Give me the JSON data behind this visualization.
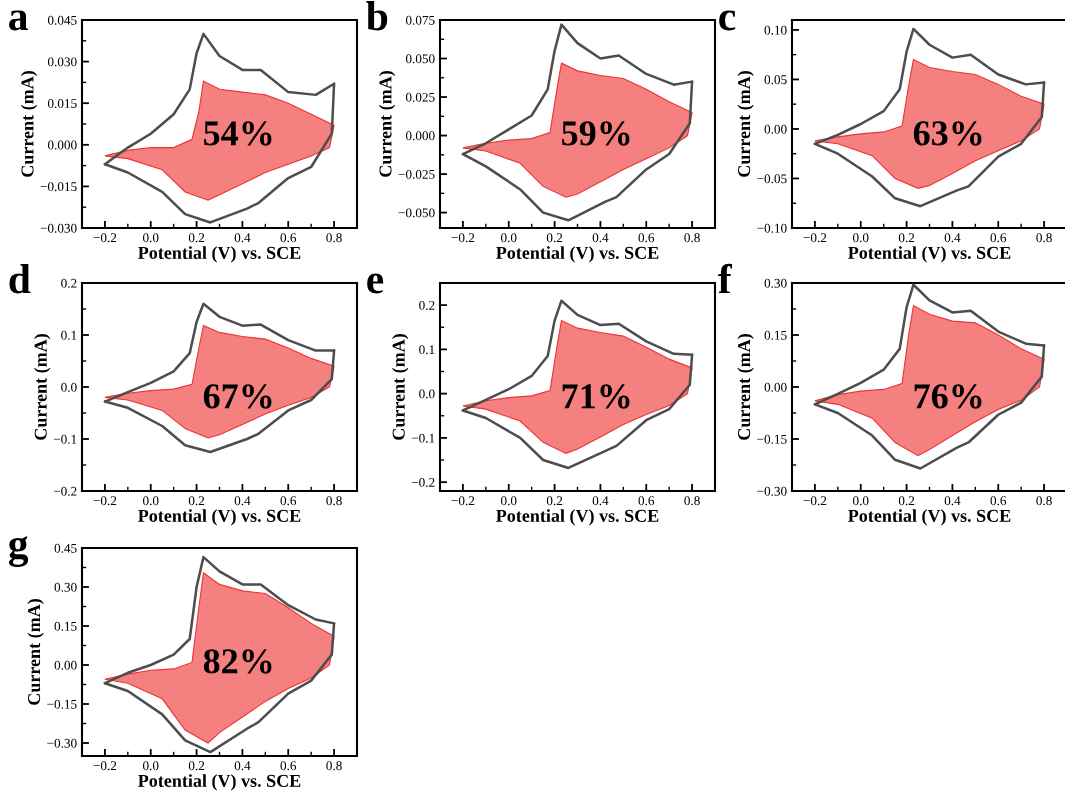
{
  "chart_data": [
    {
      "type": "line",
      "title": "a",
      "xlabel": "Potential (V) vs. SCE",
      "ylabel": "Current (mA)",
      "annotations": [
        "54%"
      ],
      "xlim": [
        -0.3,
        0.9
      ],
      "xticks": [
        {
          "value": -0.2,
          "label": "−0.2"
        },
        {
          "value": 0.0,
          "label": "0.0"
        },
        {
          "value": 0.2,
          "label": "0.2"
        },
        {
          "value": 0.4,
          "label": "0.4"
        },
        {
          "value": 0.6,
          "label": "0.6"
        },
        {
          "value": 0.8,
          "label": "0.8"
        }
      ],
      "ylim": [
        -0.03,
        0.045
      ],
      "yticks": [
        {
          "value": -0.03,
          "label": "−0.030"
        },
        {
          "value": -0.015,
          "label": "−0.015"
        },
        {
          "value": 0.0,
          "label": "0.000"
        },
        {
          "value": 0.015,
          "label": "0.015"
        },
        {
          "value": 0.03,
          "label": "0.030"
        },
        {
          "value": 0.045,
          "label": "0.045"
        }
      ],
      "grid": false,
      "legend": false,
      "series": [
        {
          "type": "line",
          "color": "#4d4d4d",
          "x": [
            -0.2,
            -0.1,
            0.0,
            0.1,
            0.17,
            0.2,
            0.23,
            0.3,
            0.4,
            0.48,
            0.6,
            0.72,
            0.8
          ],
          "values": [
            -0.007,
            -0.001,
            0.004,
            0.011,
            0.02,
            0.033,
            0.04,
            0.032,
            0.027,
            0.027,
            0.019,
            0.018,
            0.022
          ]
        },
        {
          "type": "line",
          "color": "#4d4d4d",
          "x": [
            -0.2,
            -0.1,
            0.05,
            0.15,
            0.26,
            0.42,
            0.47,
            0.6,
            0.7,
            0.79,
            0.8
          ],
          "values": [
            -0.007,
            -0.01,
            -0.017,
            -0.025,
            -0.028,
            -0.023,
            -0.021,
            -0.012,
            -0.008,
            0.004,
            0.022
          ]
        },
        {
          "type": "area",
          "color": "#f58080",
          "x": [
            -0.2,
            -0.1,
            0.0,
            0.1,
            0.18,
            0.21,
            0.23,
            0.3,
            0.4,
            0.5,
            0.6,
            0.7,
            0.8,
            0.78,
            0.7,
            0.6,
            0.5,
            0.4,
            0.3,
            0.25,
            0.15,
            0.05,
            -0.1,
            -0.2
          ],
          "values": [
            -0.004,
            -0.002,
            -0.001,
            -0.001,
            0.002,
            0.012,
            0.023,
            0.02,
            0.019,
            0.018,
            0.015,
            0.011,
            0.007,
            -0.001,
            -0.004,
            -0.007,
            -0.01,
            -0.014,
            -0.018,
            -0.02,
            -0.017,
            -0.009,
            -0.005,
            -0.004
          ]
        }
      ]
    },
    {
      "type": "line",
      "title": "b",
      "xlabel": "Potential (V) vs. SCE",
      "ylabel": "Current (mA)",
      "annotations": [
        "59%"
      ],
      "xlim": [
        -0.3,
        0.9
      ],
      "xticks": [
        {
          "value": -0.2,
          "label": "−0.2"
        },
        {
          "value": 0.0,
          "label": "0.0"
        },
        {
          "value": 0.2,
          "label": "0.2"
        },
        {
          "value": 0.4,
          "label": "0.4"
        },
        {
          "value": 0.6,
          "label": "0.6"
        },
        {
          "value": 0.8,
          "label": "0.8"
        }
      ],
      "ylim": [
        -0.06,
        0.075
      ],
      "yticks": [
        {
          "value": -0.05,
          "label": "−0.050"
        },
        {
          "value": -0.025,
          "label": "−0.025"
        },
        {
          "value": 0.0,
          "label": "0.000"
        },
        {
          "value": 0.025,
          "label": "0.025"
        },
        {
          "value": 0.05,
          "label": "0.050"
        },
        {
          "value": 0.075,
          "label": "0.075"
        }
      ],
      "grid": false,
      "legend": false,
      "series": [
        {
          "type": "line",
          "color": "#4d4d4d",
          "x": [
            -0.2,
            -0.1,
            0.0,
            0.1,
            0.17,
            0.2,
            0.23,
            0.3,
            0.4,
            0.48,
            0.6,
            0.72,
            0.8
          ],
          "values": [
            -0.012,
            -0.005,
            0.004,
            0.013,
            0.03,
            0.055,
            0.072,
            0.06,
            0.05,
            0.052,
            0.04,
            0.033,
            0.035
          ]
        },
        {
          "type": "line",
          "color": "#4d4d4d",
          "x": [
            -0.2,
            -0.1,
            0.05,
            0.15,
            0.26,
            0.42,
            0.47,
            0.6,
            0.7,
            0.79,
            0.8
          ],
          "values": [
            -0.012,
            -0.02,
            -0.035,
            -0.05,
            -0.055,
            -0.043,
            -0.04,
            -0.022,
            -0.012,
            0.008,
            0.035
          ]
        },
        {
          "type": "area",
          "color": "#f58080",
          "x": [
            -0.2,
            -0.1,
            0.0,
            0.1,
            0.18,
            0.21,
            0.23,
            0.3,
            0.4,
            0.5,
            0.6,
            0.7,
            0.8,
            0.78,
            0.7,
            0.6,
            0.5,
            0.4,
            0.3,
            0.25,
            0.15,
            0.05,
            -0.1,
            -0.2
          ],
          "values": [
            -0.008,
            -0.005,
            -0.003,
            -0.002,
            0.002,
            0.03,
            0.047,
            0.042,
            0.039,
            0.037,
            0.03,
            0.022,
            0.015,
            0.0,
            -0.008,
            -0.015,
            -0.022,
            -0.03,
            -0.038,
            -0.04,
            -0.033,
            -0.018,
            -0.01,
            -0.008
          ]
        }
      ]
    },
    {
      "type": "line",
      "title": "c",
      "xlabel": "Potential (V) vs. SCE",
      "ylabel": "Current (mA)",
      "annotations": [
        "63%"
      ],
      "xlim": [
        -0.3,
        0.9
      ],
      "xticks": [
        {
          "value": -0.2,
          "label": "−0.2"
        },
        {
          "value": 0.0,
          "label": "0.0"
        },
        {
          "value": 0.2,
          "label": "0.2"
        },
        {
          "value": 0.4,
          "label": "0.4"
        },
        {
          "value": 0.6,
          "label": "0.6"
        },
        {
          "value": 0.8,
          "label": "0.8"
        }
      ],
      "ylim": [
        -0.1,
        0.11
      ],
      "yticks": [
        {
          "value": -0.1,
          "label": "−0.10"
        },
        {
          "value": -0.05,
          "label": "−0.05"
        },
        {
          "value": 0.0,
          "label": "0.00"
        },
        {
          "value": 0.05,
          "label": "0.05"
        },
        {
          "value": 0.1,
          "label": "0.10"
        }
      ],
      "grid": false,
      "legend": false,
      "series": [
        {
          "type": "line",
          "color": "#4d4d4d",
          "x": [
            -0.2,
            -0.1,
            0.0,
            0.1,
            0.17,
            0.2,
            0.23,
            0.3,
            0.4,
            0.48,
            0.6,
            0.72,
            0.8
          ],
          "values": [
            -0.015,
            -0.006,
            0.005,
            0.018,
            0.04,
            0.078,
            0.101,
            0.085,
            0.072,
            0.075,
            0.055,
            0.045,
            0.047
          ]
        },
        {
          "type": "line",
          "color": "#4d4d4d",
          "x": [
            -0.2,
            -0.1,
            0.05,
            0.15,
            0.26,
            0.42,
            0.47,
            0.6,
            0.7,
            0.79,
            0.8
          ],
          "values": [
            -0.015,
            -0.025,
            -0.048,
            -0.07,
            -0.078,
            -0.062,
            -0.058,
            -0.028,
            -0.015,
            0.012,
            0.047
          ]
        },
        {
          "type": "area",
          "color": "#f58080",
          "x": [
            -0.2,
            -0.1,
            0.0,
            0.1,
            0.18,
            0.21,
            0.23,
            0.3,
            0.4,
            0.5,
            0.6,
            0.7,
            0.8,
            0.78,
            0.7,
            0.6,
            0.5,
            0.4,
            0.3,
            0.25,
            0.15,
            0.05,
            -0.1,
            -0.2
          ],
          "values": [
            -0.012,
            -0.008,
            -0.005,
            -0.003,
            0.003,
            0.045,
            0.07,
            0.062,
            0.058,
            0.055,
            0.045,
            0.033,
            0.025,
            0.0,
            -0.012,
            -0.022,
            -0.032,
            -0.045,
            -0.057,
            -0.06,
            -0.05,
            -0.027,
            -0.015,
            -0.012
          ]
        }
      ]
    },
    {
      "type": "line",
      "title": "d",
      "xlabel": "Potential (V) vs. SCE",
      "ylabel": "Current (mA)",
      "annotations": [
        "67%"
      ],
      "xlim": [
        -0.3,
        0.9
      ],
      "xticks": [
        {
          "value": -0.2,
          "label": "−0.2"
        },
        {
          "value": 0.0,
          "label": "0.0"
        },
        {
          "value": 0.2,
          "label": "0.2"
        },
        {
          "value": 0.4,
          "label": "0.4"
        },
        {
          "value": 0.6,
          "label": "0.6"
        },
        {
          "value": 0.8,
          "label": "0.8"
        }
      ],
      "ylim": [
        -0.2,
        0.2
      ],
      "yticks": [
        {
          "value": -0.2,
          "label": "−0.2"
        },
        {
          "value": -0.1,
          "label": "−0.1"
        },
        {
          "value": 0.0,
          "label": "0.0"
        },
        {
          "value": 0.1,
          "label": "0.1"
        },
        {
          "value": 0.2,
          "label": "0.2"
        }
      ],
      "grid": false,
      "legend": false,
      "series": [
        {
          "type": "line",
          "color": "#4d4d4d",
          "x": [
            -0.2,
            -0.1,
            0.0,
            0.1,
            0.17,
            0.2,
            0.23,
            0.3,
            0.4,
            0.48,
            0.6,
            0.72,
            0.8
          ],
          "values": [
            -0.028,
            -0.01,
            0.008,
            0.03,
            0.065,
            0.125,
            0.16,
            0.135,
            0.118,
            0.12,
            0.09,
            0.07,
            0.07
          ]
        },
        {
          "type": "line",
          "color": "#4d4d4d",
          "x": [
            -0.2,
            -0.1,
            0.05,
            0.15,
            0.26,
            0.42,
            0.47,
            0.6,
            0.7,
            0.79,
            0.8
          ],
          "values": [
            -0.028,
            -0.04,
            -0.075,
            -0.112,
            -0.125,
            -0.1,
            -0.09,
            -0.045,
            -0.025,
            0.015,
            0.07
          ]
        },
        {
          "type": "area",
          "color": "#f58080",
          "x": [
            -0.2,
            -0.1,
            0.0,
            0.1,
            0.18,
            0.21,
            0.23,
            0.3,
            0.4,
            0.5,
            0.6,
            0.7,
            0.8,
            0.78,
            0.7,
            0.6,
            0.5,
            0.4,
            0.3,
            0.25,
            0.15,
            0.05,
            -0.1,
            -0.2
          ],
          "values": [
            -0.02,
            -0.012,
            -0.007,
            -0.004,
            0.005,
            0.075,
            0.118,
            0.105,
            0.097,
            0.092,
            0.075,
            0.055,
            0.04,
            0.0,
            -0.02,
            -0.035,
            -0.052,
            -0.072,
            -0.092,
            -0.098,
            -0.08,
            -0.045,
            -0.025,
            -0.02
          ]
        }
      ]
    },
    {
      "type": "line",
      "title": "e",
      "xlabel": "Potential (V) vs. SCE",
      "ylabel": "Current (mA)",
      "annotations": [
        "71%"
      ],
      "xlim": [
        -0.3,
        0.9
      ],
      "xticks": [
        {
          "value": -0.2,
          "label": "−0.2"
        },
        {
          "value": 0.0,
          "label": "0.0"
        },
        {
          "value": 0.2,
          "label": "0.2"
        },
        {
          "value": 0.4,
          "label": "0.4"
        },
        {
          "value": 0.6,
          "label": "0.6"
        },
        {
          "value": 0.8,
          "label": "0.8"
        }
      ],
      "ylim": [
        -0.22,
        0.25
      ],
      "yticks": [
        {
          "value": -0.2,
          "label": "−0.2"
        },
        {
          "value": -0.1,
          "label": "−0.1"
        },
        {
          "value": 0.0,
          "label": "0.0"
        },
        {
          "value": 0.1,
          "label": "0.1"
        },
        {
          "value": 0.2,
          "label": "0.2"
        }
      ],
      "grid": false,
      "legend": false,
      "series": [
        {
          "type": "line",
          "color": "#4d4d4d",
          "x": [
            -0.2,
            -0.1,
            0.0,
            0.1,
            0.17,
            0.2,
            0.23,
            0.3,
            0.4,
            0.48,
            0.6,
            0.72,
            0.8
          ],
          "values": [
            -0.038,
            -0.014,
            0.01,
            0.04,
            0.085,
            0.165,
            0.21,
            0.178,
            0.155,
            0.158,
            0.118,
            0.09,
            0.088
          ]
        },
        {
          "type": "line",
          "color": "#4d4d4d",
          "x": [
            -0.2,
            -0.1,
            0.05,
            0.15,
            0.26,
            0.42,
            0.47,
            0.6,
            0.7,
            0.79,
            0.8
          ],
          "values": [
            -0.038,
            -0.055,
            -0.1,
            -0.15,
            -0.168,
            -0.13,
            -0.118,
            -0.06,
            -0.035,
            0.02,
            0.088
          ]
        },
        {
          "type": "area",
          "color": "#f58080",
          "x": [
            -0.2,
            -0.1,
            0.0,
            0.1,
            0.18,
            0.21,
            0.23,
            0.3,
            0.4,
            0.5,
            0.6,
            0.7,
            0.8,
            0.78,
            0.7,
            0.6,
            0.5,
            0.4,
            0.3,
            0.25,
            0.15,
            0.05,
            -0.1,
            -0.2
          ],
          "values": [
            -0.028,
            -0.016,
            -0.009,
            -0.005,
            0.007,
            0.105,
            0.165,
            0.148,
            0.138,
            0.13,
            0.105,
            0.078,
            0.058,
            0.0,
            -0.027,
            -0.047,
            -0.07,
            -0.098,
            -0.125,
            -0.135,
            -0.11,
            -0.062,
            -0.035,
            -0.028
          ]
        }
      ]
    },
    {
      "type": "line",
      "title": "f",
      "xlabel": "Potential (V) vs. SCE",
      "ylabel": "Current (mA)",
      "annotations": [
        "76%"
      ],
      "xlim": [
        -0.3,
        0.9
      ],
      "xticks": [
        {
          "value": -0.2,
          "label": "−0.2"
        },
        {
          "value": 0.0,
          "label": "0.0"
        },
        {
          "value": 0.2,
          "label": "0.2"
        },
        {
          "value": 0.4,
          "label": "0.4"
        },
        {
          "value": 0.6,
          "label": "0.6"
        },
        {
          "value": 0.8,
          "label": "0.8"
        }
      ],
      "ylim": [
        -0.3,
        0.3
      ],
      "yticks": [
        {
          "value": -0.3,
          "label": "−0.30"
        },
        {
          "value": -0.15,
          "label": "−0.15"
        },
        {
          "value": 0.0,
          "label": "0.00"
        },
        {
          "value": 0.15,
          "label": "0.15"
        },
        {
          "value": 0.3,
          "label": "0.30"
        }
      ],
      "grid": false,
      "legend": false,
      "series": [
        {
          "type": "line",
          "color": "#4d4d4d",
          "x": [
            -0.2,
            -0.1,
            0.0,
            0.1,
            0.17,
            0.2,
            0.23,
            0.3,
            0.4,
            0.48,
            0.6,
            0.72,
            0.8
          ],
          "values": [
            -0.05,
            -0.02,
            0.012,
            0.05,
            0.11,
            0.23,
            0.295,
            0.25,
            0.215,
            0.22,
            0.16,
            0.125,
            0.12
          ]
        },
        {
          "type": "line",
          "color": "#4d4d4d",
          "x": [
            -0.2,
            -0.1,
            0.05,
            0.15,
            0.26,
            0.42,
            0.47,
            0.6,
            0.7,
            0.79,
            0.8
          ],
          "values": [
            -0.05,
            -0.075,
            -0.14,
            -0.21,
            -0.235,
            -0.175,
            -0.16,
            -0.08,
            -0.045,
            0.03,
            0.12
          ]
        },
        {
          "type": "area",
          "color": "#f58080",
          "x": [
            -0.2,
            -0.1,
            0.0,
            0.1,
            0.18,
            0.21,
            0.23,
            0.3,
            0.4,
            0.5,
            0.6,
            0.7,
            0.8,
            0.78,
            0.7,
            0.6,
            0.5,
            0.4,
            0.3,
            0.25,
            0.15,
            0.05,
            -0.1,
            -0.2
          ],
          "values": [
            -0.04,
            -0.022,
            -0.012,
            -0.007,
            0.01,
            0.155,
            0.235,
            0.21,
            0.19,
            0.185,
            0.15,
            0.11,
            0.08,
            0.0,
            -0.038,
            -0.065,
            -0.1,
            -0.14,
            -0.18,
            -0.198,
            -0.16,
            -0.09,
            -0.05,
            -0.04
          ]
        }
      ]
    },
    {
      "type": "line",
      "title": "g",
      "xlabel": "Potential (V) vs. SCE",
      "ylabel": "Current (mA)",
      "annotations": [
        "82%"
      ],
      "xlim": [
        -0.3,
        0.9
      ],
      "xticks": [
        {
          "value": -0.2,
          "label": "−0.2"
        },
        {
          "value": 0.0,
          "label": "0.0"
        },
        {
          "value": 0.2,
          "label": "0.2"
        },
        {
          "value": 0.4,
          "label": "0.4"
        },
        {
          "value": 0.6,
          "label": "0.6"
        },
        {
          "value": 0.8,
          "label": "0.8"
        }
      ],
      "ylim": [
        -0.35,
        0.45
      ],
      "yticks": [
        {
          "value": -0.3,
          "label": "−0.30"
        },
        {
          "value": -0.15,
          "label": "−0.15"
        },
        {
          "value": 0.0,
          "label": "0.00"
        },
        {
          "value": 0.15,
          "label": "0.15"
        },
        {
          "value": 0.3,
          "label": "0.30"
        },
        {
          "value": 0.45,
          "label": "0.45"
        }
      ],
      "grid": false,
      "legend": false,
      "series": [
        {
          "type": "line",
          "color": "#4d4d4d",
          "x": [
            -0.2,
            -0.1,
            0.0,
            0.1,
            0.17,
            0.2,
            0.23,
            0.3,
            0.4,
            0.48,
            0.6,
            0.72,
            0.8
          ],
          "values": [
            -0.07,
            -0.03,
            0.0,
            0.04,
            0.1,
            0.3,
            0.415,
            0.36,
            0.31,
            0.31,
            0.23,
            0.175,
            0.16
          ]
        },
        {
          "type": "line",
          "color": "#4d4d4d",
          "x": [
            -0.2,
            -0.1,
            0.05,
            0.15,
            0.26,
            0.42,
            0.47,
            0.6,
            0.7,
            0.79,
            0.8
          ],
          "values": [
            -0.07,
            -0.1,
            -0.19,
            -0.29,
            -0.335,
            -0.245,
            -0.22,
            -0.11,
            -0.06,
            0.04,
            0.16
          ]
        },
        {
          "type": "area",
          "color": "#f58080",
          "x": [
            -0.2,
            -0.1,
            0.0,
            0.1,
            0.18,
            0.21,
            0.23,
            0.3,
            0.4,
            0.5,
            0.6,
            0.7,
            0.8,
            0.78,
            0.7,
            0.6,
            0.5,
            0.4,
            0.3,
            0.25,
            0.15,
            0.05,
            -0.1,
            -0.2
          ],
          "values": [
            -0.055,
            -0.035,
            -0.02,
            -0.015,
            0.01,
            0.22,
            0.355,
            0.31,
            0.285,
            0.275,
            0.22,
            0.16,
            0.11,
            0.0,
            -0.05,
            -0.09,
            -0.14,
            -0.2,
            -0.26,
            -0.3,
            -0.25,
            -0.13,
            -0.07,
            -0.055
          ]
        }
      ]
    }
  ]
}
